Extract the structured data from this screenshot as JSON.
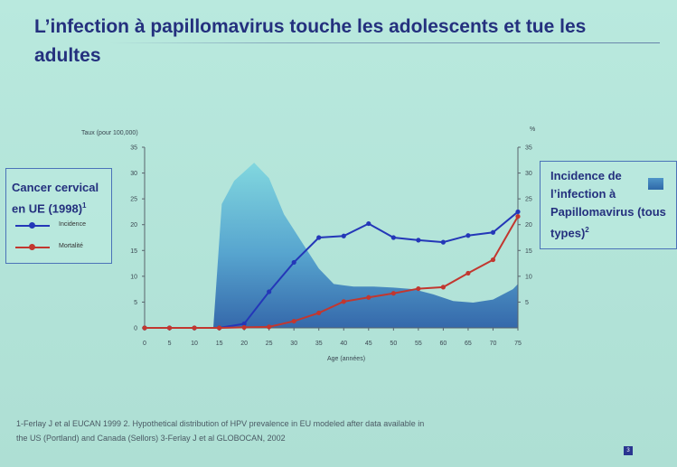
{
  "slide": {
    "title": "L’infection à papillomavirus touche les adolescents et tue les adultes",
    "footnote_line1": "1-Ferlay J et al EUCAN 1999 2. Hypothetical distribution of HPV prevalence in EU modeled after data available in",
    "footnote_line2": "the US (Portland) and Canada (Sellors) 3-Ferlay J et al GLOBOCAN, 2002",
    "page_number": "3"
  },
  "legend_left": {
    "title": "Cancer cervical en UE (1998)",
    "title_sup": "1",
    "items": [
      "Incidence",
      "Mortalité"
    ]
  },
  "legend_right": {
    "title": "Incidence de l’infection à Papillomavirus (tous types)",
    "title_sup": "2"
  },
  "chart_data": {
    "type": "line",
    "title": "",
    "xlabel": "Age (années)",
    "ylabel_left": "Taux (pour 100,000)",
    "ylabel_right": "%",
    "x": [
      0,
      5,
      10,
      15,
      20,
      25,
      30,
      35,
      40,
      45,
      50,
      55,
      60,
      65,
      70,
      75
    ],
    "x_tick_labels": [
      "0",
      "5",
      "10",
      "15",
      "20",
      "25",
      "30",
      "35",
      "40",
      "45",
      "50",
      "55",
      "60",
      "65",
      "70",
      "75"
    ],
    "ylim_left": [
      0,
      35
    ],
    "ylim_right": [
      0,
      35
    ],
    "y_ticks": [
      0,
      5,
      10,
      15,
      20,
      25,
      30,
      35
    ],
    "right_ticks": [
      5,
      10,
      15,
      20,
      25,
      30,
      35
    ],
    "series": [
      {
        "name": "Incidence",
        "axis": "left",
        "color": "#2437b8",
        "values": [
          0,
          0,
          0,
          0,
          0.8,
          7,
          12.7,
          17.5,
          17.8,
          20.2,
          17.5,
          17,
          16.6,
          17.9,
          18.5,
          22.5
        ]
      },
      {
        "name": "Mortalité",
        "axis": "left",
        "color": "#c2372f",
        "values": [
          0,
          0,
          0,
          0,
          0.1,
          0.2,
          1.3,
          2.9,
          5.1,
          5.9,
          6.7,
          7.6,
          7.9,
          10.6,
          13.2,
          21.6
        ]
      },
      {
        "name": "Incidence de l’infection à Papillomavirus (tous types)",
        "axis": "right",
        "type": "area",
        "color": "#3a86c0",
        "x": [
          13.8,
          15.5,
          18,
          22,
          25,
          28,
          32,
          35,
          38,
          42,
          46,
          50,
          54,
          58,
          62,
          66,
          70,
          74,
          75
        ],
        "values": [
          0,
          24,
          28.5,
          32,
          29,
          22,
          16,
          11.5,
          8.5,
          8,
          8,
          7.8,
          7.5,
          6.5,
          5.2,
          4.9,
          5.5,
          7.5,
          8.5
        ]
      }
    ],
    "grid": false,
    "legend_placement": "left and right"
  }
}
